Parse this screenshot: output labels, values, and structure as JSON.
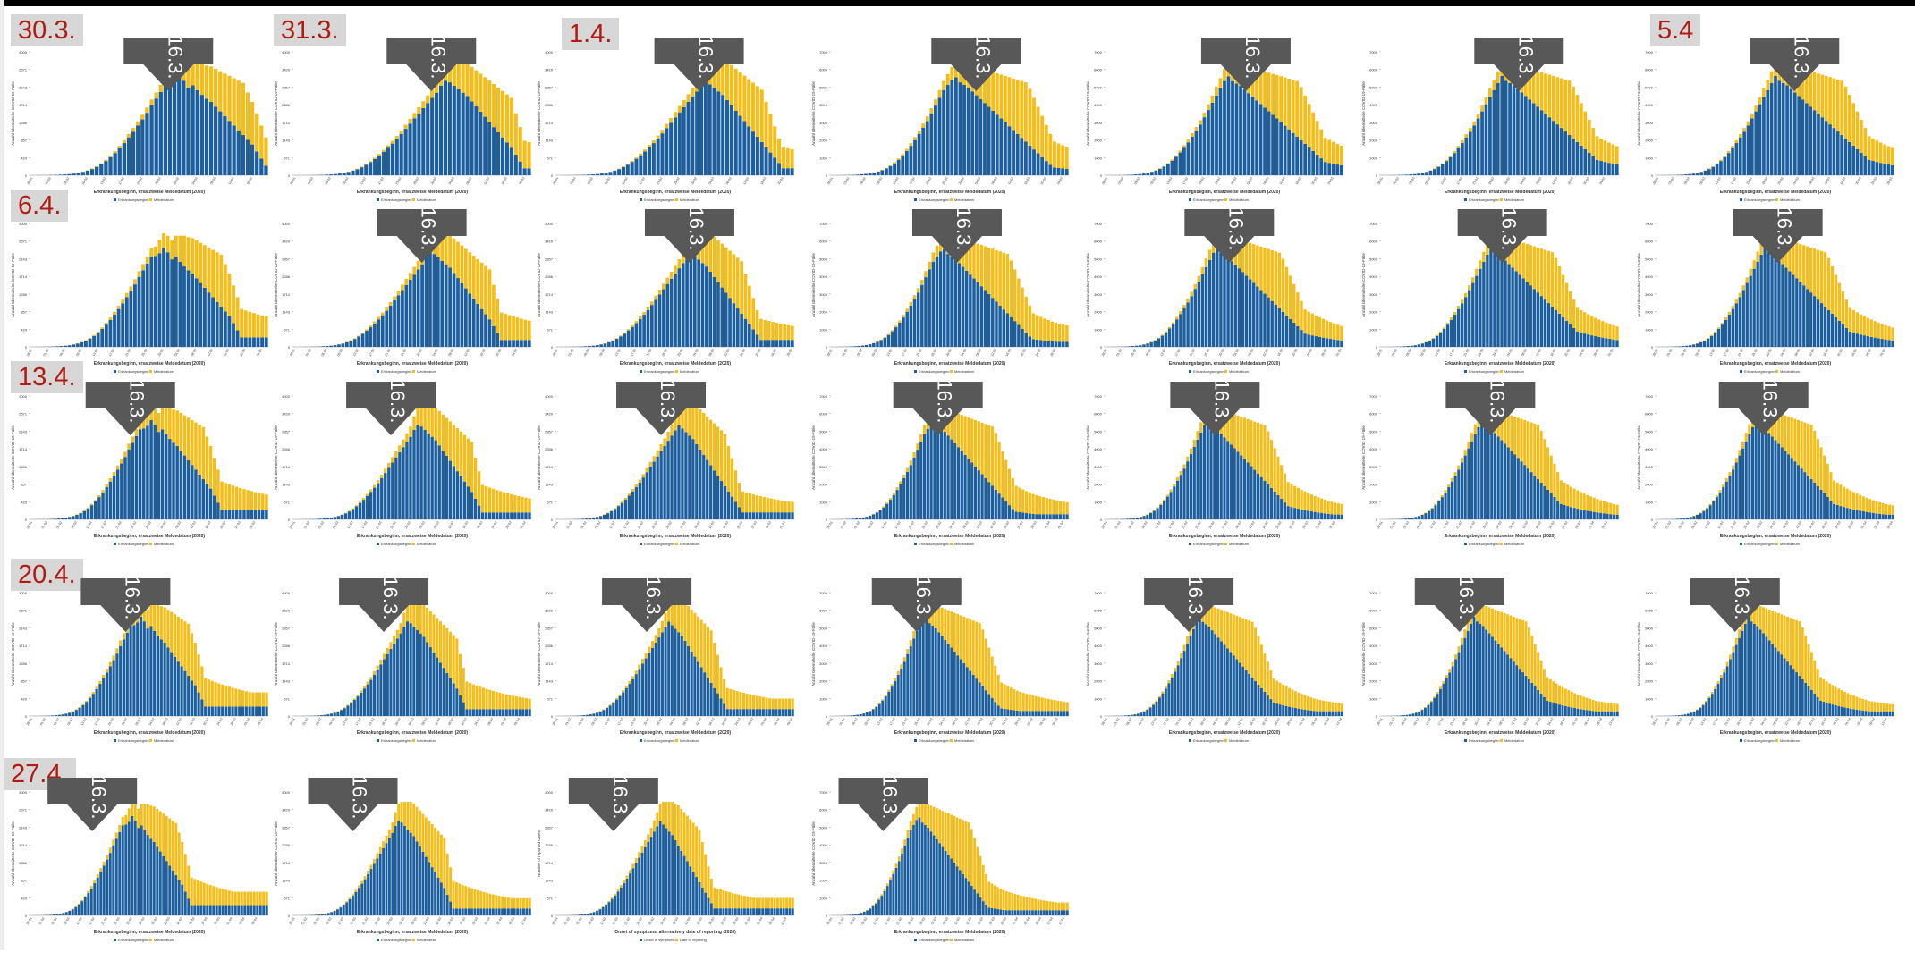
{
  "marker_label": "16.3.",
  "colors": {
    "onset": "#1d5f9e",
    "reporting": "#f3bd1b",
    "arrow": "#585858",
    "date_text": "#b01c14",
    "date_bg": "#d7d7d7"
  },
  "date_labels": [
    "30.3.",
    "31.3.",
    "1.4.",
    "5.4",
    "6.4.",
    "13.4.",
    "20.4.",
    "27.4."
  ],
  "chart_data": {
    "type": "bar",
    "stacked": true,
    "title": "",
    "x_label_de": "Erkrankungsbeginn, ersatzweise Meldedatum (2020)",
    "x_label_en": "Onset of symptoms, alternatively date of reporting (2020)",
    "y_label_de": "Anzahl übermittelte COVID-19-Fälle",
    "y_label_en": "Number of reported cases",
    "series": [
      {
        "name": "Erkrankungsbeginn",
        "color": "#1d5f9e"
      },
      {
        "name": "Meldedatum",
        "color": "#f3bd1b"
      }
    ],
    "series_en": [
      {
        "name": "Onset of symptoms",
        "color": "#1d5f9e"
      },
      {
        "name": "Date of reporting",
        "color": "#f3bd1b"
      }
    ],
    "annotation": "16.3.",
    "panels": [
      {
        "date": "30.3.",
        "ymax": 3000,
        "onset": [
          0,
          1,
          2,
          3,
          5,
          8,
          12,
          18,
          25,
          35,
          50,
          70,
          95,
          130,
          175,
          230,
          300,
          380,
          470,
          570,
          680,
          800,
          920,
          1050,
          1180,
          1320,
          1480,
          1620,
          1760,
          1900,
          1920,
          1980,
          2100,
          2000,
          1850,
          1900,
          1800,
          1700,
          1620,
          1550,
          1450,
          1350,
          1250,
          1150,
          1050,
          950,
          850,
          750,
          650,
          500,
          350,
          200
        ],
        "reporting": [
          0,
          0,
          0,
          0,
          0,
          1,
          1,
          2,
          3,
          4,
          5,
          7,
          9,
          12,
          15,
          20,
          25,
          30,
          40,
          50,
          60,
          70,
          80,
          90,
          100,
          110,
          120,
          130,
          150,
          180,
          200,
          280,
          300,
          350,
          400,
          450,
          550,
          650,
          700,
          750,
          800,
          850,
          900,
          950,
          1000,
          1050,
          1100,
          1000,
          900,
          800,
          700,
          600
        ]
      },
      {
        "date": "31.3.",
        "ymax": 4000,
        "onset": [
          0,
          1,
          2,
          3,
          5,
          8,
          12,
          18,
          25,
          35,
          50,
          70,
          95,
          130,
          175,
          230,
          300,
          380,
          470,
          570,
          680,
          800,
          920,
          1050,
          1200,
          1350,
          1500,
          1650,
          1800,
          1950,
          2100,
          2250,
          2400,
          2600,
          2750,
          2700,
          2600,
          2500,
          2400,
          2300,
          2150,
          2000,
          1850,
          1700,
          1550,
          1400,
          1250,
          1100,
          950,
          800,
          600,
          400,
          200
        ],
        "reporting": [
          0,
          0,
          0,
          0,
          0,
          1,
          1,
          2,
          3,
          4,
          5,
          7,
          9,
          12,
          15,
          20,
          25,
          30,
          40,
          50,
          60,
          70,
          80,
          90,
          100,
          120,
          140,
          160,
          180,
          200,
          220,
          250,
          300,
          400,
          500,
          600,
          700,
          800,
          900,
          950,
          1000,
          1050,
          1100,
          1150,
          1200,
          1250,
          1300,
          1350,
          1400,
          1450,
          1200,
          1000,
          800
        ]
      },
      {
        "date": "1.4.",
        "ymax": 4000,
        "onset": [
          0,
          1,
          2,
          3,
          5,
          8,
          12,
          18,
          25,
          35,
          50,
          70,
          95,
          130,
          175,
          230,
          300,
          380,
          470,
          570,
          680,
          800,
          920,
          1050,
          1200,
          1350,
          1500,
          1650,
          1800,
          1950,
          2100,
          2250,
          2400,
          2550,
          2700,
          2600,
          2500,
          2400,
          2300,
          2150,
          2000,
          1850,
          1700,
          1550,
          1400,
          1250,
          1100,
          950,
          800,
          650,
          500,
          350,
          200
        ],
        "reporting": [
          0,
          0,
          0,
          0,
          0,
          1,
          1,
          2,
          3,
          4,
          5,
          7,
          9,
          12,
          15,
          20,
          25,
          30,
          40,
          50,
          60,
          70,
          80,
          90,
          100,
          120,
          140,
          160,
          180,
          200,
          220,
          260,
          320,
          400,
          500,
          650,
          750,
          850,
          950,
          1050,
          1150,
          1200,
          1250,
          1300,
          1350,
          1400,
          1450,
          1500,
          1300,
          1100,
          900,
          700,
          600
        ]
      },
      {
        "date": "",
        "ymax": 7000,
        "onset": [
          0,
          2,
          4,
          6,
          10,
          16,
          24,
          36,
          50,
          70,
          100,
          140,
          190,
          260,
          350,
          460,
          600,
          760,
          940,
          1140,
          1360,
          1600,
          1840,
          2100,
          2400,
          2700,
          3000,
          3300,
          3500,
          3700,
          3800,
          3600,
          3500,
          3400,
          3250,
          3100,
          2950,
          2800,
          2650,
          2500,
          2350,
          2200,
          2050,
          1900,
          1750,
          1600,
          1450,
          1300,
          1150,
          1000,
          850,
          700,
          550,
          400,
          300
        ],
        "reporting": [
          0,
          0,
          0,
          0,
          0,
          2,
          2,
          4,
          6,
          8,
          10,
          14,
          18,
          24,
          30,
          40,
          50,
          60,
          80,
          100,
          120,
          140,
          160,
          180,
          200,
          240,
          300,
          360,
          420,
          500,
          600,
          700,
          800,
          900,
          1000,
          1100,
          1200,
          1300,
          1400,
          1500,
          1600,
          1700,
          1800,
          1900,
          2000,
          2100,
          2200,
          2300,
          2200,
          2000,
          1800,
          1600,
          1400,
          1200,
          1000
        ]
      },
      {
        "date": "",
        "ymax": 7000,
        "onset": [
          0,
          2,
          4,
          6,
          10,
          16,
          24,
          36,
          50,
          70,
          100,
          140,
          190,
          260,
          350,
          460,
          600,
          760,
          940,
          1140,
          1360,
          1600,
          1840,
          2100,
          2400,
          2700,
          3000,
          3300,
          3600,
          3900,
          4100,
          3900,
          3800,
          3700,
          3550,
          3400,
          3250,
          3100,
          2950,
          2800,
          2650,
          2500,
          2350,
          2200,
          2050,
          1900,
          1750,
          1600,
          1450,
          1300,
          1150,
          1000,
          850,
          700,
          550
        ],
        "reporting": [
          0,
          0,
          0,
          0,
          0,
          2,
          2,
          4,
          6,
          8,
          10,
          14,
          18,
          24,
          30,
          40,
          50,
          60,
          80,
          100,
          120,
          140,
          160,
          180,
          200,
          240,
          300,
          360,
          420,
          500,
          600,
          700,
          800,
          900,
          1000,
          1100,
          1200,
          1300,
          1400,
          1500,
          1600,
          1700,
          1800,
          1900,
          2000,
          2100,
          2200,
          2300,
          2200,
          2000,
          1800,
          1600,
          1400,
          1200,
          1000
        ]
      },
      {
        "date": "",
        "ymax": 7000,
        "onset": [
          0,
          2,
          4,
          6,
          10,
          16,
          24,
          36,
          50,
          70,
          100,
          140,
          190,
          260,
          350,
          460,
          600,
          760,
          940,
          1140,
          1360,
          1600,
          1840,
          2100,
          2400,
          2700,
          3000,
          3300,
          3600,
          3900,
          4200,
          4000,
          3900,
          3800,
          3650,
          3500,
          3350,
          3200,
          3050,
          2900,
          2750,
          2600,
          2450,
          2300,
          2150,
          2000,
          1850,
          1700,
          1550,
          1400,
          1250,
          1100,
          950,
          800,
          650
        ],
        "reporting": [
          0,
          0,
          0,
          0,
          0,
          2,
          2,
          4,
          6,
          8,
          10,
          14,
          18,
          24,
          30,
          40,
          50,
          60,
          80,
          100,
          120,
          140,
          160,
          180,
          200,
          240,
          300,
          360,
          420,
          500,
          600,
          700,
          800,
          900,
          1000,
          1100,
          1200,
          1300,
          1400,
          1500,
          1600,
          1700,
          1800,
          1900,
          2000,
          2100,
          2200,
          2300,
          2200,
          2000,
          1800,
          1600,
          1400,
          1200,
          1000
        ]
      },
      {
        "date": "5.4",
        "ymax": 7000,
        "onset": [
          0,
          2,
          4,
          6,
          10,
          16,
          24,
          36,
          50,
          70,
          100,
          140,
          190,
          260,
          350,
          460,
          600,
          760,
          940,
          1140,
          1360,
          1600,
          1840,
          2100,
          2400,
          2700,
          3000,
          3300,
          3600,
          3900,
          4200,
          4000,
          3900,
          3800,
          3650,
          3500,
          3350,
          3200,
          3050,
          2900,
          2750,
          2600,
          2450,
          2300,
          2150,
          2000,
          1850,
          1700,
          1550,
          1400,
          1250,
          1100,
          950,
          800,
          650
        ],
        "reporting": [
          0,
          0,
          0,
          0,
          0,
          2,
          2,
          4,
          6,
          8,
          10,
          14,
          18,
          24,
          30,
          40,
          50,
          60,
          80,
          100,
          120,
          140,
          160,
          180,
          200,
          240,
          300,
          360,
          420,
          500,
          600,
          700,
          800,
          900,
          1000,
          1100,
          1200,
          1300,
          1400,
          1500,
          1600,
          1700,
          1800,
          1900,
          2000,
          2100,
          2200,
          2300,
          2200,
          2000,
          1800,
          1600,
          1400,
          1200,
          1000
        ]
      }
    ]
  },
  "grid": {
    "rows": [
      {
        "label": "30.3.",
        "panels": 7
      },
      {
        "label": "6.4.",
        "panels": 7
      },
      {
        "label": "13.4.",
        "panels": 7
      },
      {
        "label": "20.4.",
        "panels": 7
      },
      {
        "label": "27.4.",
        "panels": 4
      }
    ]
  }
}
